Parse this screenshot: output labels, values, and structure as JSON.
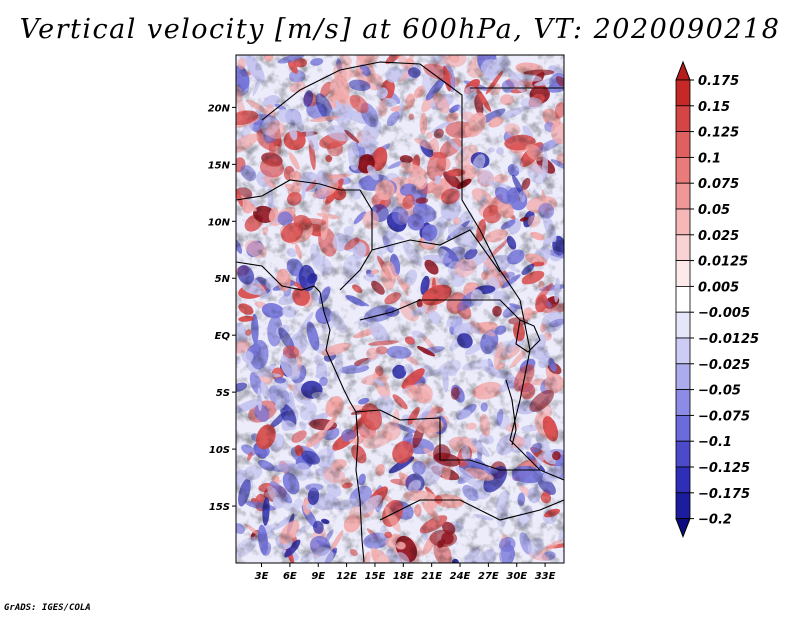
{
  "title": "Vertical velocity [m/s] at 600hPa, VT: 2020090218",
  "credit": "GrADS: IGES/COLA",
  "map": {
    "lat_labels": [
      "20N",
      "15N",
      "10N",
      "5N",
      "EQ",
      "5S",
      "10S",
      "15S"
    ],
    "lat_values": [
      20,
      15,
      10,
      5,
      0,
      -5,
      -10,
      -15
    ],
    "lon_labels": [
      "3E",
      "6E",
      "9E",
      "12E",
      "15E",
      "18E",
      "21E",
      "24E",
      "27E",
      "30E",
      "33E"
    ],
    "lon_values": [
      3,
      6,
      9,
      12,
      15,
      18,
      21,
      24,
      27,
      30,
      33
    ],
    "lat_range": [
      -20,
      24.6
    ],
    "lon_range": [
      0.3,
      35
    ]
  },
  "colorbar": {
    "labels": [
      "0.175",
      "0.15",
      "0.125",
      "0.1",
      "0.075",
      "0.05",
      "0.025",
      "0.0125",
      "0.005",
      "−0.005",
      "−0.0125",
      "−0.025",
      "−0.05",
      "−0.075",
      "−0.1",
      "−0.125",
      "−0.175",
      "−0.2"
    ],
    "colors": [
      "#b71c1c",
      "#c62828",
      "#d64545",
      "#e06060",
      "#e97b7b",
      "#f09898",
      "#f6b7b7",
      "#f9d3d3",
      "#fde9e9",
      "#ffffff",
      "#e6e6fb",
      "#ccccf5",
      "#ababee",
      "#8c8ce6",
      "#6b6bdb",
      "#4a4acb",
      "#2e2eb8",
      "#1c1c9e",
      "#0c0c80"
    ]
  },
  "palette": {
    "red_dark": "#8f0f1a",
    "red": "#d84a4a",
    "red_light": "#f2a9a9",
    "blue_light": "#c4c4ef",
    "blue": "#7373d9",
    "blue_dark": "#2c2ca8"
  }
}
